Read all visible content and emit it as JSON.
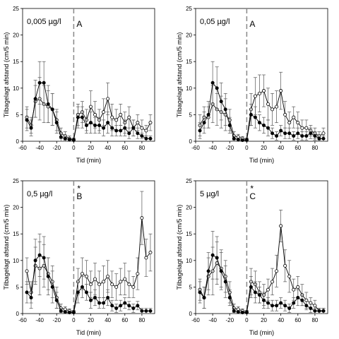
{
  "chart_data": [
    {
      "type": "line",
      "panel": "top-left",
      "concentration_label": "0,005 µg/l",
      "letter": "A",
      "star": "",
      "xlabel": "Tid (min)",
      "ylabel": "Tilbagelagt afstand (cm/5 min)",
      "xlim": [
        -60,
        95
      ],
      "ylim": [
        0,
        25
      ],
      "xticks": [
        "-60",
        "-40",
        "-20",
        "0",
        "20",
        "40",
        "60",
        "80"
      ],
      "yticks": [
        "0",
        "5",
        "10",
        "15",
        "20",
        "25"
      ],
      "treatment_line_x": 0,
      "x": [
        -55,
        -50,
        -45,
        -40,
        -35,
        -30,
        -25,
        -20,
        -15,
        -10,
        -5,
        0,
        5,
        10,
        15,
        20,
        25,
        30,
        35,
        40,
        45,
        50,
        55,
        60,
        65,
        70,
        75,
        80,
        85,
        90
      ],
      "series": [
        {
          "marker": "open-circle",
          "values": [
            4.5,
            3.0,
            7.5,
            8.0,
            7.0,
            6.5,
            6.0,
            4.0,
            1.5,
            1.0,
            0.5,
            0.3,
            5.0,
            5.5,
            4.0,
            6.5,
            5.0,
            4.0,
            5.5,
            8.0,
            4.5,
            4.0,
            5.0,
            3.5,
            4.5,
            2.5,
            3.5,
            2.5,
            2.0,
            3.5
          ],
          "errors": [
            2.0,
            1.5,
            3.0,
            4.0,
            3.5,
            3.0,
            3.0,
            2.0,
            1.0,
            0.8,
            0.5,
            0.3,
            2.0,
            2.0,
            2.0,
            3.0,
            2.5,
            2.0,
            2.5,
            3.0,
            2.5,
            2.0,
            2.0,
            2.0,
            2.0,
            1.5,
            1.5,
            1.5,
            1.0,
            1.5
          ]
        },
        {
          "marker": "filled-circle",
          "values": [
            4.0,
            2.5,
            8.0,
            11.0,
            11.0,
            7.0,
            6.0,
            3.5,
            0.8,
            0.5,
            0.3,
            0.2,
            4.5,
            4.5,
            3.0,
            3.5,
            3.0,
            3.0,
            2.5,
            3.5,
            2.5,
            2.0,
            2.0,
            2.5,
            1.5,
            2.5,
            1.5,
            1.0,
            0.5,
            0.5
          ],
          "errors": [
            2.0,
            1.5,
            3.5,
            4.0,
            4.0,
            3.5,
            3.0,
            2.0,
            0.8,
            0.5,
            0.3,
            0.2,
            2.0,
            2.0,
            1.5,
            2.0,
            1.5,
            1.5,
            1.5,
            2.0,
            1.5,
            1.0,
            1.0,
            1.5,
            1.0,
            1.5,
            1.0,
            0.5,
            0.5,
            0.5
          ]
        }
      ]
    },
    {
      "type": "line",
      "panel": "top-right",
      "concentration_label": "0,05 µg/l",
      "letter": "A",
      "star": "",
      "xlabel": "Tid (min)",
      "ylabel": "Tilbagelagt afstand (cm/5 min)",
      "xlim": [
        -60,
        95
      ],
      "ylim": [
        0,
        25
      ],
      "xticks": [
        "-60",
        "-40",
        "-20",
        "0",
        "20",
        "40",
        "60",
        "80"
      ],
      "yticks": [
        "0",
        "5",
        "10",
        "15",
        "20",
        "25"
      ],
      "treatment_line_x": 0,
      "x": [
        -55,
        -50,
        -45,
        -40,
        -35,
        -30,
        -25,
        -20,
        -15,
        -10,
        -5,
        0,
        5,
        10,
        15,
        20,
        25,
        30,
        35,
        40,
        45,
        50,
        55,
        60,
        65,
        70,
        75,
        80,
        85,
        90
      ],
      "series": [
        {
          "marker": "open-circle",
          "values": [
            3.0,
            4.5,
            4.5,
            7.0,
            6.0,
            5.5,
            5.0,
            4.0,
            1.0,
            0.8,
            0.5,
            0.3,
            6.0,
            8.5,
            9.0,
            9.5,
            7.0,
            6.0,
            6.5,
            9.5,
            5.0,
            3.5,
            4.5,
            3.5,
            2.5,
            2.5,
            2.0,
            1.5,
            1.0,
            1.5
          ],
          "errors": [
            2.0,
            2.0,
            2.0,
            3.5,
            3.0,
            3.0,
            3.0,
            2.0,
            0.8,
            0.5,
            0.4,
            0.3,
            3.0,
            3.5,
            3.5,
            3.0,
            3.0,
            3.0,
            3.0,
            3.5,
            2.5,
            2.0,
            2.0,
            2.0,
            1.5,
            1.5,
            1.0,
            1.0,
            0.8,
            1.0
          ]
        },
        {
          "marker": "filled-circle",
          "values": [
            2.0,
            3.5,
            5.0,
            11.0,
            10.0,
            7.5,
            6.0,
            3.0,
            0.5,
            0.3,
            0.2,
            0.2,
            5.0,
            4.5,
            3.5,
            3.0,
            2.5,
            1.5,
            1.0,
            2.0,
            1.5,
            1.5,
            1.0,
            1.5,
            1.0,
            1.0,
            1.5,
            1.0,
            0.5,
            0.5
          ],
          "errors": [
            1.5,
            2.0,
            2.5,
            4.0,
            4.0,
            3.5,
            3.0,
            1.5,
            0.5,
            0.3,
            0.2,
            0.2,
            2.0,
            2.0,
            1.5,
            1.5,
            1.5,
            1.0,
            0.8,
            1.0,
            1.0,
            1.0,
            0.8,
            1.0,
            0.8,
            0.8,
            1.0,
            0.8,
            0.5,
            0.5
          ]
        }
      ]
    },
    {
      "type": "line",
      "panel": "bottom-left",
      "concentration_label": "0,5 µg/l",
      "letter": "B",
      "star": "*",
      "xlabel": "Tid (min)",
      "ylabel": "Tilbagelagt afstand (cm/5 min)",
      "xlim": [
        -60,
        95
      ],
      "ylim": [
        0,
        25
      ],
      "xticks": [
        "-60",
        "-40",
        "-20",
        "0",
        "20",
        "40",
        "60",
        "80"
      ],
      "yticks": [
        "0",
        "5",
        "10",
        "15",
        "20",
        "25"
      ],
      "treatment_line_x": 0,
      "x": [
        -55,
        -50,
        -45,
        -40,
        -35,
        -30,
        -25,
        -20,
        -15,
        -10,
        -5,
        0,
        5,
        10,
        15,
        20,
        25,
        30,
        35,
        40,
        45,
        50,
        55,
        60,
        65,
        70,
        75,
        80,
        85,
        90
      ],
      "series": [
        {
          "marker": "open-circle",
          "values": [
            8.0,
            4.0,
            9.0,
            8.5,
            9.0,
            7.5,
            6.0,
            3.0,
            1.0,
            0.8,
            0.5,
            0.3,
            6.0,
            7.5,
            7.0,
            5.5,
            6.5,
            5.5,
            6.0,
            7.0,
            5.5,
            5.0,
            6.0,
            6.5,
            5.5,
            5.0,
            7.5,
            18.0,
            10.5,
            11.5
          ],
          "errors": [
            2.5,
            2.0,
            3.5,
            5.0,
            4.0,
            3.0,
            3.0,
            2.0,
            0.8,
            0.5,
            0.4,
            0.3,
            2.5,
            3.0,
            3.0,
            2.5,
            3.0,
            2.5,
            3.0,
            3.0,
            2.5,
            2.5,
            2.5,
            3.0,
            2.5,
            2.0,
            3.0,
            5.0,
            3.5,
            3.5
          ]
        },
        {
          "marker": "filled-circle",
          "values": [
            4.0,
            3.0,
            10.0,
            11.0,
            10.5,
            7.0,
            5.0,
            2.5,
            0.5,
            0.3,
            0.2,
            0.2,
            4.0,
            5.0,
            4.0,
            2.5,
            3.0,
            2.0,
            2.0,
            3.0,
            1.5,
            1.0,
            1.5,
            2.0,
            1.5,
            1.0,
            1.5,
            0.5,
            0.5,
            0.5
          ],
          "errors": [
            2.0,
            2.0,
            4.0,
            4.0,
            4.0,
            3.5,
            3.0,
            1.5,
            0.5,
            0.3,
            0.2,
            0.2,
            2.0,
            2.0,
            1.5,
            1.5,
            1.5,
            1.0,
            1.0,
            1.5,
            1.0,
            0.8,
            1.0,
            1.0,
            0.8,
            0.8,
            0.8,
            0.5,
            0.5,
            0.5
          ]
        }
      ]
    },
    {
      "type": "line",
      "panel": "bottom-right",
      "concentration_label": "5 µg/l",
      "letter": "C",
      "star": "*",
      "xlabel": "Tid (min)",
      "ylabel": "Tilbagelagt afstand (cm/5 min)",
      "xlim": [
        -60,
        95
      ],
      "ylim": [
        0,
        25
      ],
      "xticks": [
        "-60",
        "-40",
        "-20",
        "0",
        "20",
        "40",
        "60",
        "80"
      ],
      "yticks": [
        "0",
        "5",
        "10",
        "15",
        "20",
        "25"
      ],
      "treatment_line_x": 0,
      "x": [
        -55,
        -50,
        -45,
        -40,
        -35,
        -30,
        -25,
        -20,
        -15,
        -10,
        -5,
        0,
        5,
        10,
        15,
        20,
        25,
        30,
        35,
        40,
        45,
        50,
        55,
        60,
        65,
        70,
        75,
        80,
        85,
        90
      ],
      "series": [
        {
          "marker": "open-circle",
          "values": [
            4.5,
            3.0,
            7.0,
            8.0,
            9.5,
            8.5,
            7.0,
            4.0,
            1.0,
            0.8,
            0.5,
            0.3,
            6.0,
            5.5,
            4.0,
            3.5,
            4.5,
            6.0,
            8.0,
            16.5,
            9.0,
            7.0,
            4.5,
            5.0,
            3.5,
            2.5,
            2.0,
            1.5,
            0.5,
            0.5
          ],
          "errors": [
            2.0,
            2.0,
            3.5,
            4.5,
            4.0,
            3.5,
            3.0,
            2.0,
            0.8,
            0.5,
            0.4,
            0.3,
            2.5,
            2.5,
            2.0,
            2.0,
            2.0,
            2.5,
            3.0,
            3.0,
            3.0,
            3.0,
            2.0,
            2.0,
            2.0,
            1.5,
            1.0,
            1.0,
            0.5,
            0.5
          ]
        },
        {
          "marker": "filled-circle",
          "values": [
            4.0,
            3.0,
            8.0,
            11.0,
            10.5,
            8.0,
            6.0,
            3.0,
            0.5,
            0.3,
            0.2,
            0.2,
            5.0,
            4.0,
            3.5,
            2.5,
            2.0,
            1.5,
            1.5,
            2.0,
            1.5,
            1.0,
            2.0,
            3.0,
            2.5,
            1.5,
            1.0,
            0.5,
            0.5,
            0.5
          ],
          "errors": [
            2.0,
            2.0,
            3.5,
            4.5,
            4.0,
            3.5,
            3.0,
            1.5,
            0.5,
            0.3,
            0.2,
            0.2,
            2.0,
            2.0,
            1.5,
            1.5,
            1.0,
            1.0,
            1.0,
            1.0,
            1.0,
            0.8,
            1.0,
            1.5,
            1.0,
            0.8,
            0.8,
            0.5,
            0.5,
            0.5
          ]
        }
      ]
    }
  ]
}
